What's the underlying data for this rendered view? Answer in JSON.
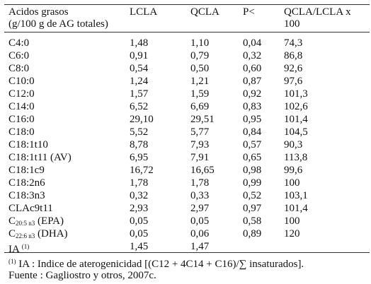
{
  "table": {
    "header": {
      "col0_line1": "Acidos grasos",
      "col0_line2": "(g/100 g de AG totales)",
      "col1": "LCLA",
      "col2": "QCLA",
      "col3": "P<",
      "col4_line1": "QCLA/LCLA x",
      "col4_line2": "100"
    },
    "rows": [
      {
        "name": "C4:0",
        "lcla": "1,48",
        "qcla": "1,10",
        "p": "0,04",
        "ratio": "74,3"
      },
      {
        "name": "C6:0",
        "lcla": "0,91",
        "qcla": "0,79",
        "p": "0,32",
        "ratio": "86,8"
      },
      {
        "name": "C8:0",
        "lcla": "0,54",
        "qcla": "0,50",
        "p": "0,60",
        "ratio": "92,6"
      },
      {
        "name": "C10:0",
        "lcla": "1,24",
        "qcla": "1,21",
        "p": "0,87",
        "ratio": "97,6"
      },
      {
        "name": "C12:0",
        "lcla": "1,57",
        "qcla": "1,59",
        "p": "0,92",
        "ratio": "101,3"
      },
      {
        "name": "C14:0",
        "lcla": "6,52",
        "qcla": "6,69",
        "p": "0,83",
        "ratio": "102,6"
      },
      {
        "name": "C16:0",
        "lcla": "29,10",
        "qcla": "29,51",
        "p": "0,95",
        "ratio": "101,4"
      },
      {
        "name": "C18:0",
        "lcla": "5,52",
        "qcla": "5,77",
        "p": "0,84",
        "ratio": "104,5"
      },
      {
        "name": "C18:1t10",
        "lcla": "8,78",
        "qcla": "7,93",
        "p": "0,57",
        "ratio": "90,3"
      },
      {
        "name": "C18:1t11 (AV)",
        "lcla": "6,95",
        "qcla": "7,91",
        "p": "0,65",
        "ratio": "113,8"
      },
      {
        "name": "C18:1c9",
        "lcla": "16,72",
        "qcla": "16,65",
        "p": "0,98",
        "ratio": "99,6"
      },
      {
        "name": "C18:2n6",
        "lcla": "1,78",
        "qcla": "1,78",
        "p": "0,99",
        "ratio": "100"
      },
      {
        "name": "C18:3n3",
        "lcla": "0,32",
        "qcla": "0,33",
        "p": "0,52",
        "ratio": "103,1"
      },
      {
        "name": "CLAc9t11",
        "lcla": "2,93",
        "qcla": "2,97",
        "p": "0,97",
        "ratio": "101,4"
      }
    ],
    "epa_row": {
      "name_prefix": "C",
      "name_sub": "20:5 n3",
      "name_suffix": " (EPA)",
      "lcla": "0,05",
      "qcla": "0,05",
      "p": "0,58",
      "ratio": "100"
    },
    "dha_row": {
      "name_prefix": "C",
      "name_sub": "22:6 n3",
      "name_suffix": " (DHA)",
      "lcla": "0,05",
      "qcla": "0,06",
      "p": "0,89",
      "ratio": "120"
    },
    "ia_row": {
      "name": "IA ",
      "name_sup": "(1)",
      "lcla": "1,45",
      "qcla": "1,47",
      "p": "",
      "ratio": ""
    }
  },
  "footnote": {
    "marker": "(1)",
    "text": " IA : Indice de aterogenicidad  [(C12 + 4C14 + C16)/∑ insaturados].",
    "source": "Fuente : Gagliostro y otros, 2007c."
  }
}
